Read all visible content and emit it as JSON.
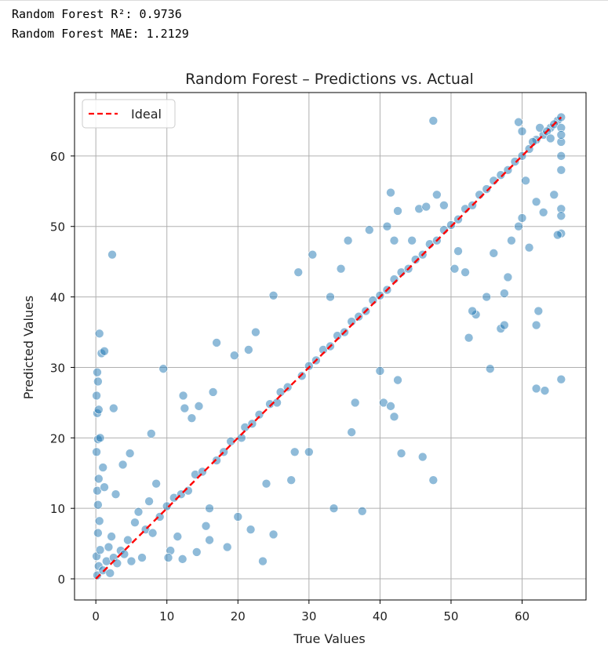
{
  "output": {
    "line1": "Random Forest R²: 0.9736",
    "line2": "Random Forest MAE: 1.2129"
  },
  "chart_data": {
    "type": "scatter",
    "title": "Random Forest – Predictions vs. Actual",
    "xlabel": "True Values",
    "ylabel": "Predicted Values",
    "xlim": [
      -3,
      69
    ],
    "ylim": [
      -3,
      69
    ],
    "xticks": [
      0,
      10,
      20,
      30,
      40,
      50,
      60
    ],
    "yticks": [
      0,
      10,
      20,
      30,
      40,
      50,
      60
    ],
    "grid": true,
    "legend": {
      "placement": "top-left",
      "entries": [
        "Ideal"
      ]
    },
    "colors": {
      "points": "#1f77b4",
      "ideal": "#ff0000"
    },
    "ideal_line": {
      "x": [
        0,
        65.5
      ],
      "y": [
        0,
        65.5
      ]
    },
    "series": [
      {
        "values": [
          [
            0.2,
            0.5
          ],
          [
            0.4,
            1.8
          ],
          [
            0.1,
            3.2
          ],
          [
            0.6,
            4.1
          ],
          [
            0.3,
            6.5
          ],
          [
            0.5,
            8.2
          ],
          [
            0.2,
            12.5
          ],
          [
            0.4,
            14.2
          ],
          [
            0.1,
            18.0
          ],
          [
            0.3,
            19.8
          ],
          [
            0.2,
            23.5
          ],
          [
            0.4,
            24.0
          ],
          [
            0.1,
            26.0
          ],
          [
            0.3,
            28.0
          ],
          [
            0.2,
            29.3
          ],
          [
            0.5,
            34.8
          ],
          [
            0.8,
            32.0
          ],
          [
            1.2,
            32.3
          ],
          [
            0.6,
            20.0
          ],
          [
            0.3,
            10.5
          ],
          [
            1.0,
            1.2
          ],
          [
            1.5,
            2.5
          ],
          [
            2.0,
            0.8
          ],
          [
            2.5,
            3.0
          ],
          [
            1.8,
            4.5
          ],
          [
            3.0,
            2.2
          ],
          [
            3.5,
            4.0
          ],
          [
            2.2,
            6.0
          ],
          [
            4.0,
            3.5
          ],
          [
            4.5,
            5.5
          ],
          [
            2.3,
            46.0
          ],
          [
            2.5,
            24.2
          ],
          [
            4.8,
            17.8
          ],
          [
            3.8,
            16.2
          ],
          [
            1.0,
            15.8
          ],
          [
            1.2,
            13.0
          ],
          [
            2.8,
            12.0
          ],
          [
            5.5,
            8.0
          ],
          [
            6.0,
            9.5
          ],
          [
            7.0,
            7.0
          ],
          [
            5.0,
            2.5
          ],
          [
            6.5,
            3.0
          ],
          [
            8.0,
            6.5
          ],
          [
            9.0,
            8.8
          ],
          [
            10.0,
            10.3
          ],
          [
            11.0,
            11.5
          ],
          [
            7.5,
            11.0
          ],
          [
            8.5,
            13.5
          ],
          [
            9.5,
            29.8
          ],
          [
            7.8,
            20.6
          ],
          [
            10.5,
            4.0
          ],
          [
            11.5,
            6.0
          ],
          [
            12.0,
            12.0
          ],
          [
            13.0,
            12.5
          ],
          [
            14.0,
            14.8
          ],
          [
            15.0,
            15.2
          ],
          [
            12.5,
            24.2
          ],
          [
            13.5,
            22.8
          ],
          [
            12.3,
            26.0
          ],
          [
            14.5,
            24.5
          ],
          [
            10.2,
            3.0
          ],
          [
            12.2,
            2.8
          ],
          [
            14.2,
            3.8
          ],
          [
            15.5,
            7.5
          ],
          [
            16.0,
            10.0
          ],
          [
            17.0,
            16.8
          ],
          [
            18.0,
            18.0
          ],
          [
            19.0,
            19.5
          ],
          [
            16.5,
            26.5
          ],
          [
            17.0,
            33.5
          ],
          [
            16.0,
            5.5
          ],
          [
            18.5,
            4.5
          ],
          [
            20.0,
            8.8
          ],
          [
            20.5,
            20.0
          ],
          [
            21.0,
            21.5
          ],
          [
            22.0,
            22.0
          ],
          [
            23.0,
            23.3
          ],
          [
            19.5,
            31.7
          ],
          [
            21.5,
            32.5
          ],
          [
            22.5,
            35.0
          ],
          [
            21.8,
            7.0
          ],
          [
            23.5,
            2.5
          ],
          [
            25.0,
            6.3
          ],
          [
            24.0,
            13.5
          ],
          [
            24.5,
            24.8
          ],
          [
            25.5,
            25.0
          ],
          [
            26.0,
            26.5
          ],
          [
            27.0,
            27.2
          ],
          [
            25.0,
            40.2
          ],
          [
            28.5,
            43.5
          ],
          [
            27.5,
            14.0
          ],
          [
            28.0,
            18.0
          ],
          [
            29.0,
            28.8
          ],
          [
            30.0,
            30.2
          ],
          [
            31.0,
            31.0
          ],
          [
            32.0,
            32.5
          ],
          [
            30.5,
            46.0
          ],
          [
            33.0,
            40.0
          ],
          [
            33.5,
            10.0
          ],
          [
            30.0,
            18.0
          ],
          [
            33.0,
            33.0
          ],
          [
            34.0,
            34.5
          ],
          [
            35.0,
            35.0
          ],
          [
            36.0,
            36.5
          ],
          [
            37.0,
            37.2
          ],
          [
            34.5,
            44.0
          ],
          [
            35.5,
            48.0
          ],
          [
            36.0,
            20.8
          ],
          [
            37.5,
            9.6
          ],
          [
            36.5,
            25.0
          ],
          [
            38.0,
            38.0
          ],
          [
            39.0,
            39.5
          ],
          [
            40.0,
            40.2
          ],
          [
            41.0,
            41.0
          ],
          [
            42.0,
            42.5
          ],
          [
            38.5,
            49.5
          ],
          [
            41.0,
            50.0
          ],
          [
            42.0,
            48.0
          ],
          [
            40.5,
            25.0
          ],
          [
            40.0,
            29.5
          ],
          [
            41.5,
            24.5
          ],
          [
            42.5,
            28.2
          ],
          [
            43.0,
            17.8
          ],
          [
            42.0,
            23.0
          ],
          [
            41.5,
            54.8
          ],
          [
            42.5,
            52.2
          ],
          [
            44.5,
            48.0
          ],
          [
            43.0,
            43.5
          ],
          [
            44.0,
            44.0
          ],
          [
            45.0,
            45.3
          ],
          [
            46.0,
            46.0
          ],
          [
            47.0,
            47.5
          ],
          [
            48.0,
            48.0
          ],
          [
            49.0,
            49.5
          ],
          [
            46.0,
            17.3
          ],
          [
            47.5,
            14.0
          ],
          [
            48.0,
            54.5
          ],
          [
            45.5,
            52.5
          ],
          [
            46.5,
            52.8
          ],
          [
            49.0,
            53.0
          ],
          [
            50.0,
            50.2
          ],
          [
            51.0,
            51.0
          ],
          [
            52.0,
            52.5
          ],
          [
            53.0,
            53.0
          ],
          [
            54.0,
            54.5
          ],
          [
            55.0,
            55.3
          ],
          [
            50.5,
            44.0
          ],
          [
            51.0,
            46.5
          ],
          [
            52.5,
            34.2
          ],
          [
            53.5,
            37.5
          ],
          [
            55.0,
            40.0
          ],
          [
            55.5,
            29.8
          ],
          [
            56.0,
            46.2
          ],
          [
            57.0,
            35.5
          ],
          [
            57.5,
            40.5
          ],
          [
            58.0,
            42.8
          ],
          [
            57.5,
            36.0
          ],
          [
            53.0,
            38.0
          ],
          [
            52.0,
            43.5
          ],
          [
            56.0,
            56.5
          ],
          [
            57.0,
            57.3
          ],
          [
            58.0,
            58.0
          ],
          [
            59.0,
            59.2
          ],
          [
            60.0,
            60.0
          ],
          [
            61.0,
            61.0
          ],
          [
            62.0,
            62.3
          ],
          [
            63.0,
            63.0
          ],
          [
            64.0,
            64.0
          ],
          [
            65.0,
            65.0
          ],
          [
            65.5,
            65.5
          ],
          [
            47.5,
            65.0
          ],
          [
            59.5,
            50.0
          ],
          [
            60.0,
            51.2
          ],
          [
            58.5,
            48.0
          ],
          [
            61.0,
            47.0
          ],
          [
            62.0,
            36.0
          ],
          [
            62.3,
            38.0
          ],
          [
            62.0,
            27.0
          ],
          [
            63.2,
            26.7
          ],
          [
            65.5,
            28.3
          ],
          [
            65.5,
            52.5
          ],
          [
            65.5,
            49.0
          ],
          [
            65.0,
            48.8
          ],
          [
            65.5,
            58.0
          ],
          [
            65.5,
            60.0
          ],
          [
            65.5,
            62.0
          ],
          [
            64.5,
            64.5
          ],
          [
            60.0,
            63.5
          ],
          [
            61.5,
            62.0
          ],
          [
            59.5,
            64.8
          ],
          [
            62.5,
            64.0
          ],
          [
            63.5,
            63.5
          ],
          [
            64.0,
            62.5
          ],
          [
            65.5,
            64.0
          ],
          [
            65.5,
            63.0
          ],
          [
            60.5,
            56.5
          ],
          [
            62.0,
            53.5
          ],
          [
            63.0,
            52.0
          ],
          [
            64.5,
            54.5
          ],
          [
            65.5,
            51.5
          ]
        ]
      }
    ]
  }
}
